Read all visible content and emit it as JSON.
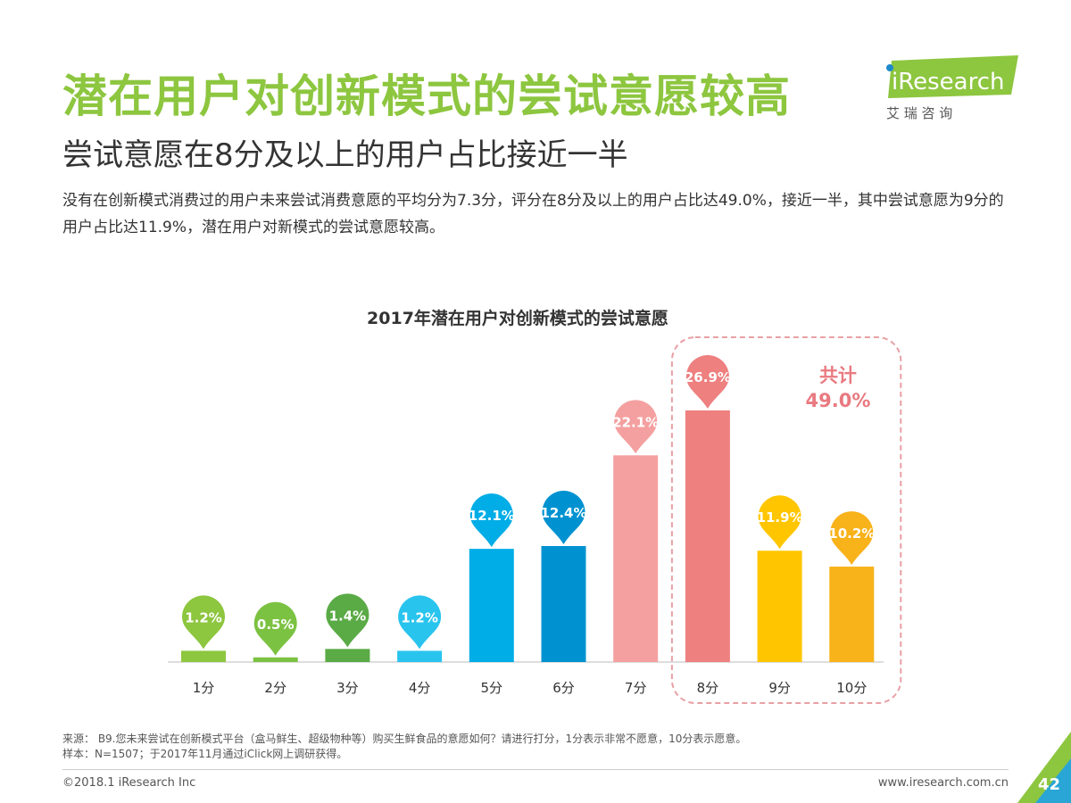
{
  "header": {
    "title": "潜在用户对创新模式的尝试意愿较高",
    "subtitle": "尝试意愿在8分及以上的用户占比接近一半",
    "description": "没有在创新模式消费过的用户未来尝试消费意愿的平均分为7.3分，评分在8分及以上的用户占比达49.0%，接近一半，其中尝试意愿为9分的用户占比达11.9%，潜在用户对新模式的尝试意愿较高。"
  },
  "logo": {
    "brand": "iResearch",
    "tagline": "艾 瑞 咨 询"
  },
  "chart_data": {
    "type": "bar",
    "title": "2017年潜在用户对创新模式的尝试意愿",
    "categories": [
      "1分",
      "2分",
      "3分",
      "4分",
      "5分",
      "6分",
      "7分",
      "8分",
      "9分",
      "10分"
    ],
    "values": [
      1.2,
      0.5,
      1.4,
      1.2,
      12.1,
      12.4,
      22.1,
      26.9,
      11.9,
      10.2
    ],
    "value_labels": [
      "1.2%",
      "0.5%",
      "1.4%",
      "1.2%",
      "12.1%",
      "12.4%",
      "22.1%",
      "26.9%",
      "11.9%",
      "10.2%"
    ],
    "colors": [
      "#8dc63f",
      "#7cc242",
      "#5aaa46",
      "#29c4ee",
      "#00ade6",
      "#0092d0",
      "#f4a0a0",
      "#ee8080",
      "#ffc600",
      "#f8b21a"
    ],
    "ylim": [
      0,
      28
    ],
    "annotation": {
      "label": "共计",
      "value": "49.0%",
      "color": "#e87a80",
      "covers": [
        "8分",
        "9分",
        "10分"
      ]
    }
  },
  "footer": {
    "source": "来源： B9.您未来尝试在创新模式平台（盒马鲜生、超级物种等）购买生鲜食品的意愿如何？请进行打分，1分表示非常不愿意，10分表示愿意。",
    "sample": "样本：N=1507；于2017年11月通过iClick网上调研获得。",
    "copyright": "©2018.1 iResearch Inc",
    "website": "www.iresearch.com.cn",
    "page_number": "42"
  }
}
